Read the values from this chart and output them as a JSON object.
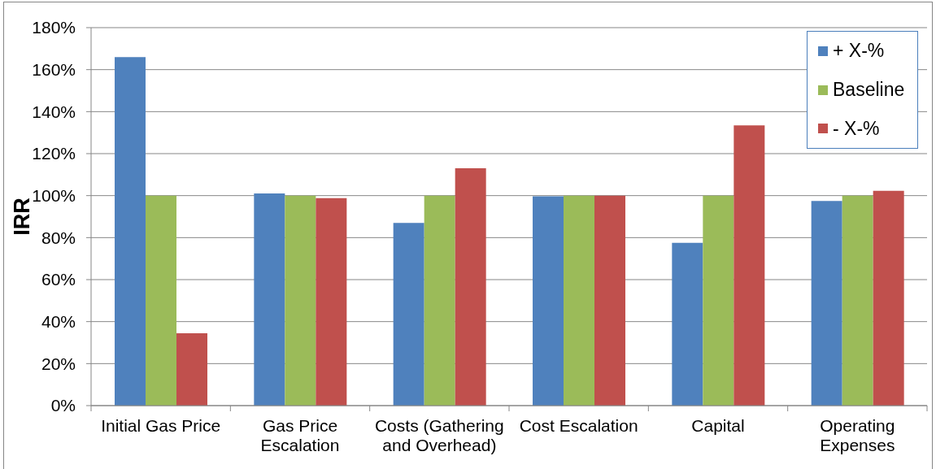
{
  "chart_data": {
    "type": "bar",
    "ylabel": "IRR",
    "categories": [
      "Initial Gas Price",
      "Gas Price Escalation",
      "Costs (Gathering and Overhead)",
      "Cost Escalation",
      "Capital",
      "Operating Expenses"
    ],
    "series": [
      {
        "name": "+ X-%",
        "color": "#4f81bd",
        "values": [
          166,
          101,
          87,
          99.7,
          77.5,
          97.5
        ]
      },
      {
        "name": "Baseline",
        "color": "#9bbb59",
        "values": [
          100,
          100,
          100,
          100,
          100,
          100
        ]
      },
      {
        "name": "- X-%",
        "color": "#c0504d",
        "values": [
          34.5,
          98.8,
          113,
          100,
          133.5,
          102.3
        ]
      }
    ],
    "ylim": [
      0,
      180
    ],
    "yticks": [
      {
        "value": 0,
        "label": "0%"
      },
      {
        "value": 20,
        "label": "20%"
      },
      {
        "value": 40,
        "label": "40%"
      },
      {
        "value": 60,
        "label": "60%"
      },
      {
        "value": 80,
        "label": "80%"
      },
      {
        "value": 100,
        "label": "100%"
      },
      {
        "value": 120,
        "label": "120%"
      },
      {
        "value": 140,
        "label": "140%"
      },
      {
        "value": 160,
        "label": "160%"
      },
      {
        "value": 180,
        "label": "180%"
      }
    ],
    "grid": "y",
    "legend": "top right"
  }
}
